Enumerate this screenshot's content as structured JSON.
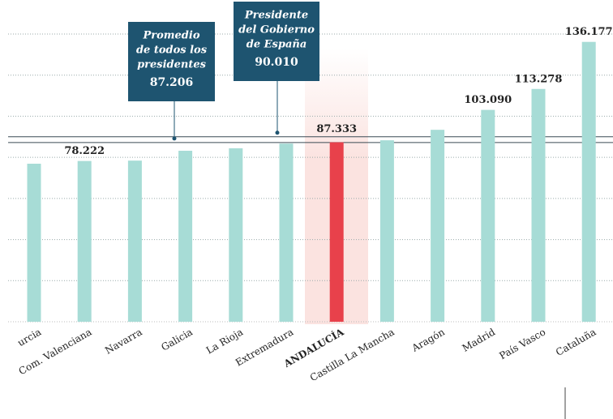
{
  "chart_data": {
    "type": "bar",
    "categories": [
      "urcia",
      "Com. Valenciana",
      "Navarra",
      "Galicia",
      "La Rioja",
      "Extremadura",
      "ANDALUCÍA",
      "Castilla La Mancha",
      "Aragón",
      "Madrid",
      "País Vasco",
      "Cataluña"
    ],
    "values": [
      76900,
      78222,
      78400,
      83200,
      84400,
      86700,
      87333,
      88300,
      93400,
      103090,
      113278,
      136177
    ],
    "value_labels": [
      null,
      "78.222",
      null,
      null,
      null,
      null,
      "87.333",
      null,
      null,
      "103.090",
      "113.278",
      "136.177"
    ],
    "color": "#a7dcd6",
    "bar_colors": [
      "#a7dcd6",
      "#a7dcd6",
      "#a7dcd6",
      "#a7dcd6",
      "#a7dcd6",
      "#a7dcd6",
      "#e8414b",
      "#a7dcd6",
      "#a7dcd6",
      "#a7dcd6",
      "#a7dcd6",
      "#a7dcd6"
    ],
    "ylim": [
      0,
      140000
    ],
    "yticks": [
      20000,
      40000,
      60000,
      80000,
      100000,
      120000,
      140000
    ],
    "grid": true,
    "annotations": [
      {
        "lines": [
          "Promedio",
          "de todos los",
          "presidentes"
        ],
        "value": 87206,
        "label": "87.206"
      },
      {
        "lines": [
          "Presidente",
          "del Gobierno",
          "de España"
        ],
        "value": 90010,
        "label": "90.010"
      }
    ]
  }
}
